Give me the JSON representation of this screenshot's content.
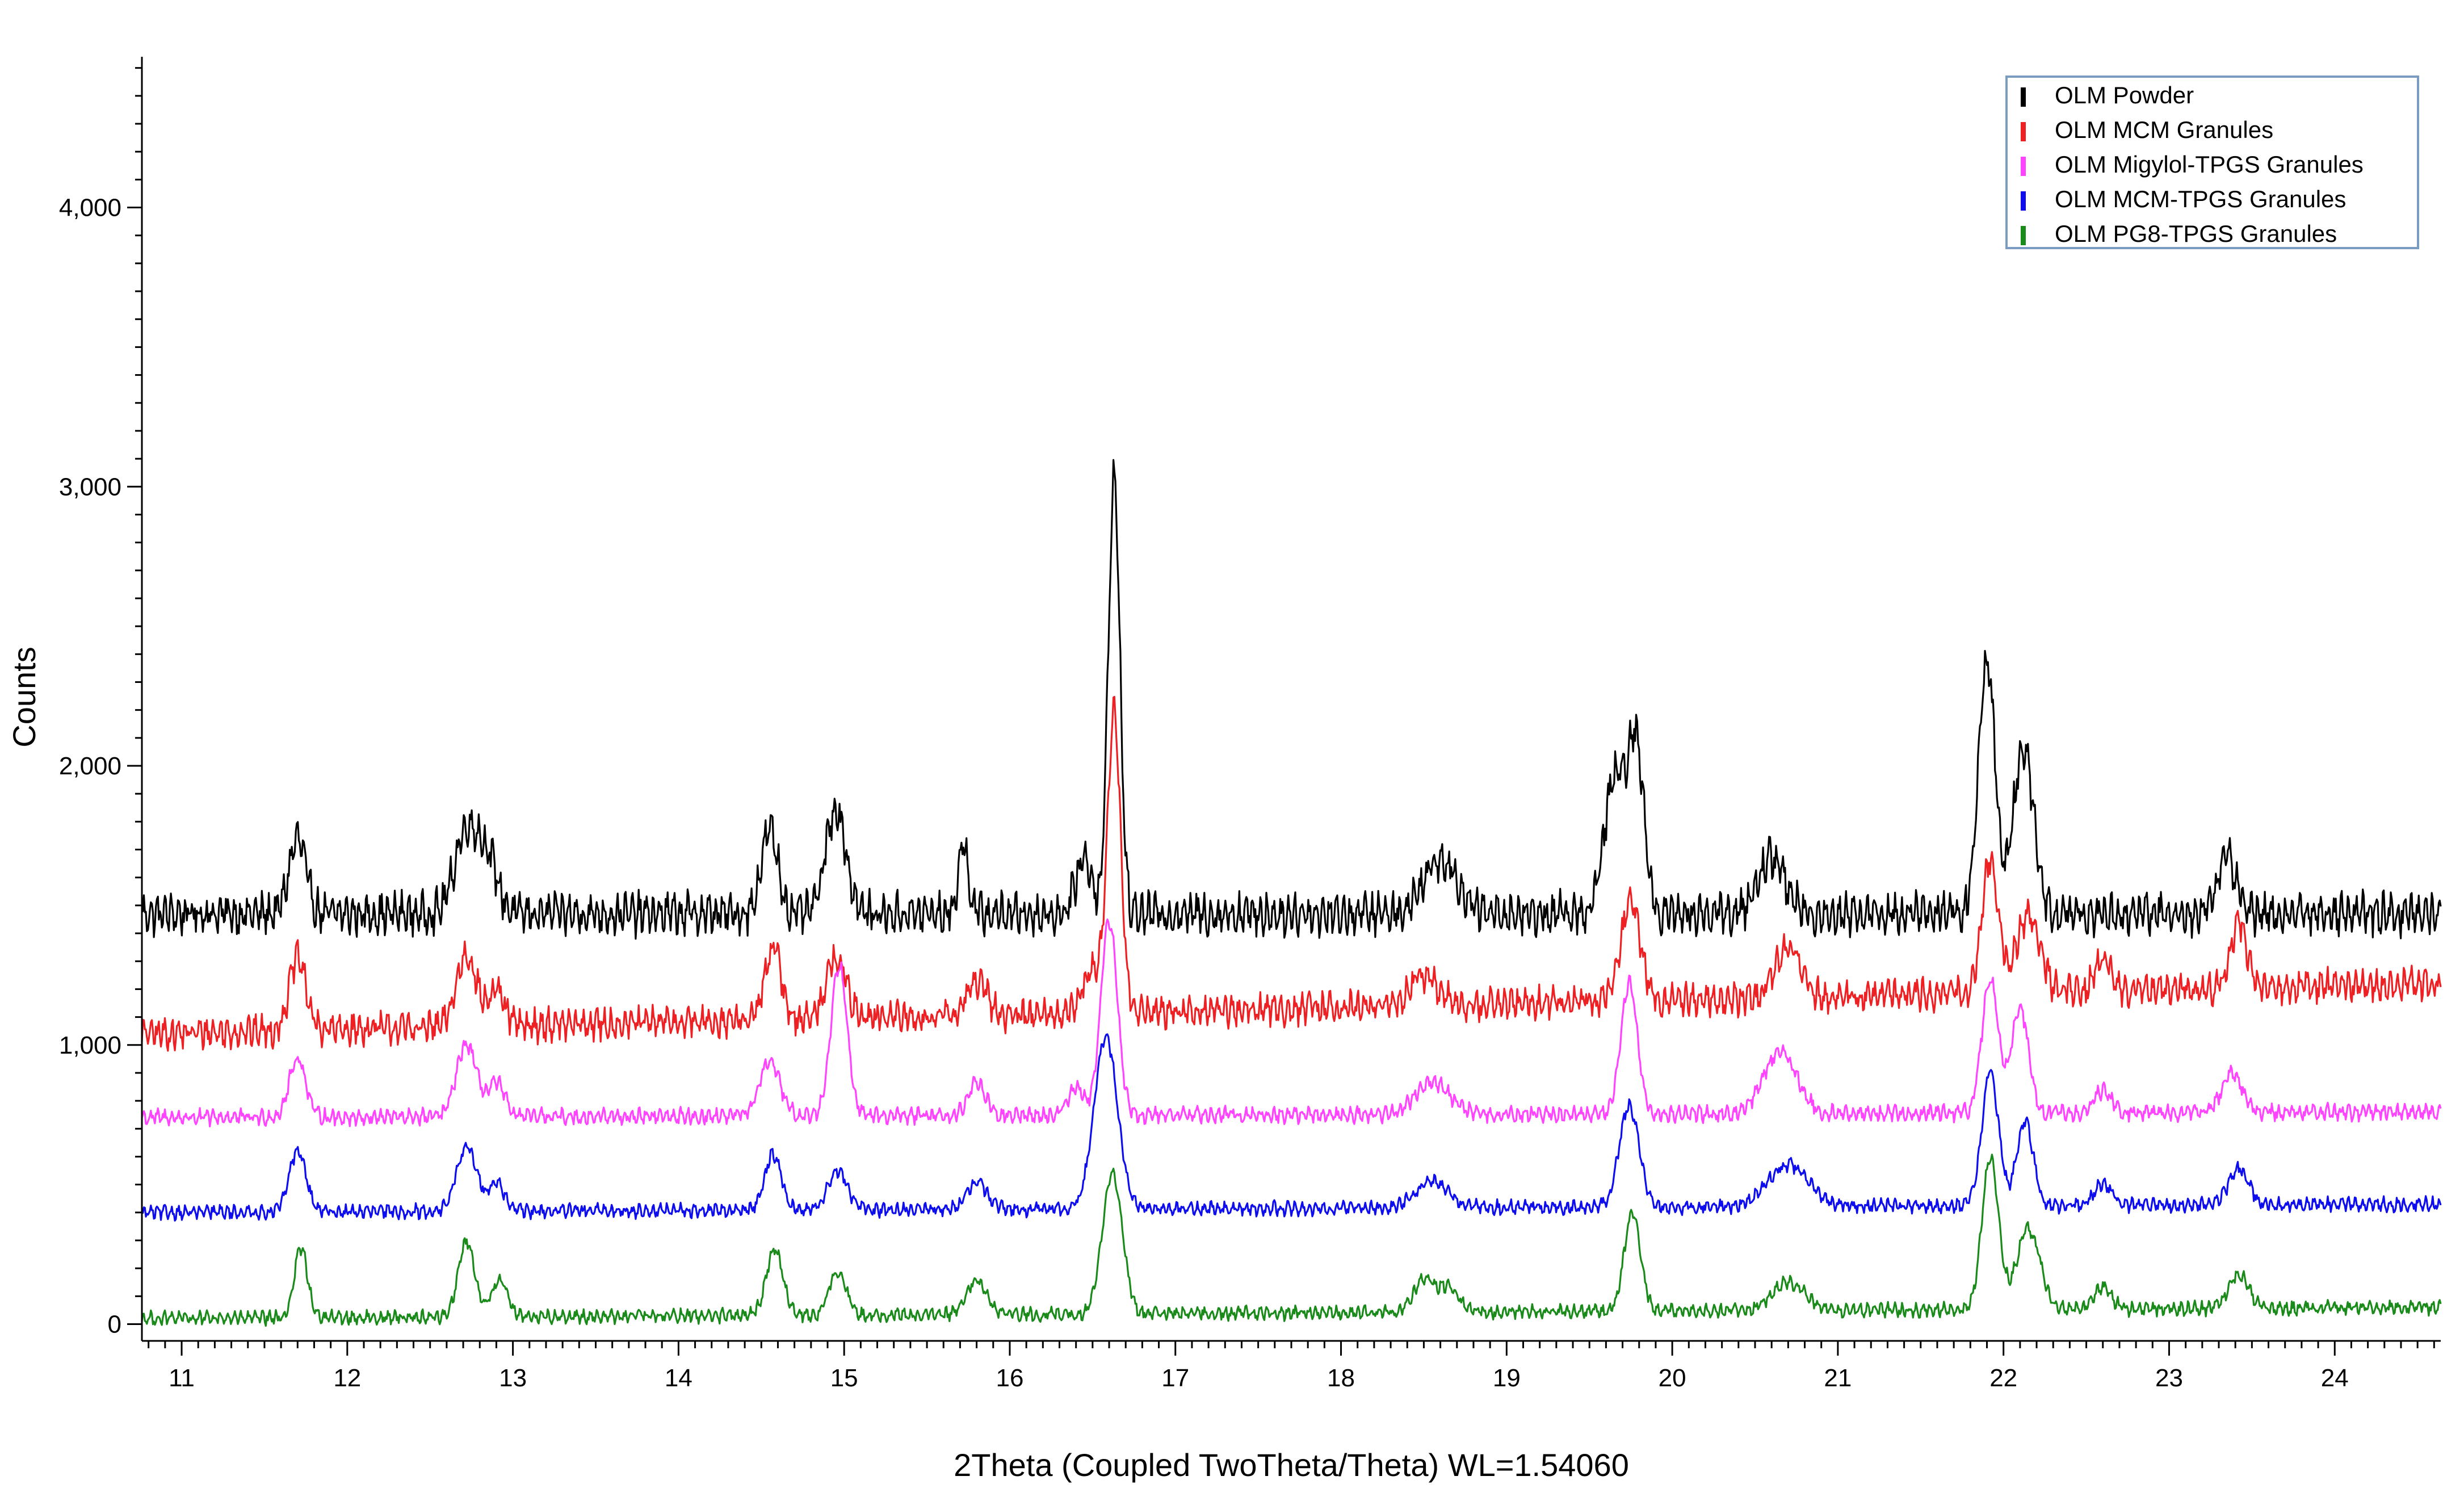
{
  "chart_data": {
    "type": "line",
    "title": "",
    "xlabel": "2Theta (Coupled TwoTheta/Theta) WL=1.54060",
    "ylabel": "Counts",
    "xlim": [
      10.76,
      24.64
    ],
    "ylim": [
      -60,
      4540
    ],
    "xticks": [
      11,
      12,
      13,
      14,
      15,
      16,
      17,
      18,
      19,
      20,
      21,
      22,
      23,
      24
    ],
    "xtick_labels": [
      "11",
      "12",
      "13",
      "14",
      "15",
      "16",
      "17",
      "18",
      "19",
      "20",
      "21",
      "22",
      "23",
      "24"
    ],
    "yticks": [
      0,
      1000,
      2000,
      3000,
      4000
    ],
    "ytick_labels": [
      "0",
      "1,000",
      "2,000",
      "3,000",
      "4,000"
    ],
    "grid": false,
    "legend_position": "top-right",
    "series": [
      {
        "name": "OLM Powder",
        "color": "#000000",
        "baseline": 1470,
        "noise": 90,
        "peaks": [
          [
            11.7,
            270,
            0.05
          ],
          [
            12.72,
            300,
            0.07
          ],
          [
            12.85,
            180,
            0.06
          ],
          [
            14.55,
            300,
            0.05
          ],
          [
            14.95,
            380,
            0.06
          ],
          [
            15.72,
            250,
            0.03
          ],
          [
            16.45,
            200,
            0.05
          ],
          [
            16.63,
            1560,
            0.035
          ],
          [
            19.65,
            480,
            0.06
          ],
          [
            19.78,
            600,
            0.05
          ],
          [
            21.9,
            900,
            0.05
          ],
          [
            22.12,
            600,
            0.06
          ],
          [
            20.6,
            200,
            0.08
          ],
          [
            18.6,
            200,
            0.1
          ],
          [
            23.35,
            200,
            0.06
          ]
        ],
        "x": [
          11.0,
          12.0,
          13.0,
          14.0,
          15.0,
          16.0,
          16.63,
          17.0,
          18.0,
          19.0,
          19.78,
          20.0,
          21.0,
          21.92,
          22.0,
          23.0,
          24.0
        ],
        "y": [
          1480,
          1460,
          1480,
          1460,
          1870,
          1470,
          3040,
          1480,
          1480,
          1490,
          2080,
          1560,
          1480,
          2380,
          1960,
          1470,
          1460
        ]
      },
      {
        "name": "OLM MCM Granules",
        "color": "#ed2024",
        "baseline_start": 1040,
        "baseline_end": 1220,
        "noise": 70,
        "peaks": [
          [
            11.7,
            260,
            0.05
          ],
          [
            12.72,
            260,
            0.06
          ],
          [
            12.9,
            120,
            0.05
          ],
          [
            14.57,
            260,
            0.05
          ],
          [
            14.95,
            220,
            0.06
          ],
          [
            15.8,
            120,
            0.06
          ],
          [
            16.63,
            1060,
            0.04
          ],
          [
            16.5,
            150,
            0.06
          ],
          [
            18.5,
            110,
            0.08
          ],
          [
            19.75,
            350,
            0.06
          ],
          [
            20.7,
            180,
            0.08
          ],
          [
            21.92,
            480,
            0.05
          ],
          [
            22.15,
            280,
            0.07
          ],
          [
            22.6,
            100,
            0.05
          ],
          [
            23.42,
            230,
            0.05
          ]
        ],
        "x": [
          11.0,
          12.0,
          13.0,
          14.0,
          14.95,
          16.0,
          16.65,
          17.0,
          18.0,
          19.0,
          19.75,
          20.0,
          21.0,
          21.92,
          22.0,
          23.0,
          24.0,
          24.6
        ],
        "y": [
          1050,
          1070,
          1120,
          1100,
          1370,
          1150,
          2200,
          1160,
          1160,
          1180,
          1550,
          1220,
          1200,
          1640,
          1420,
          1190,
          1180,
          1270
        ]
      },
      {
        "name": "OLM Migylol-TPGS Granules",
        "color": "#ff44ff",
        "baseline_start": 740,
        "baseline_end": 760,
        "noise": 35,
        "peaks": [
          [
            11.7,
            210,
            0.05
          ],
          [
            12.72,
            260,
            0.06
          ],
          [
            12.9,
            120,
            0.05
          ],
          [
            14.55,
            200,
            0.06
          ],
          [
            14.97,
            540,
            0.05
          ],
          [
            15.8,
            120,
            0.05
          ],
          [
            16.6,
            700,
            0.05
          ],
          [
            16.4,
            100,
            0.05
          ],
          [
            18.55,
            120,
            0.1
          ],
          [
            19.74,
            470,
            0.05
          ],
          [
            20.65,
            220,
            0.1
          ],
          [
            21.92,
            480,
            0.05
          ],
          [
            22.1,
            380,
            0.05
          ],
          [
            22.6,
            80,
            0.05
          ],
          [
            23.38,
            140,
            0.06
          ]
        ],
        "x": [
          11.0,
          12.0,
          12.72,
          13.0,
          14.0,
          14.97,
          16.0,
          16.6,
          17.0,
          18.0,
          19.0,
          19.74,
          20.0,
          21.0,
          21.92,
          22.0,
          23.0,
          24.0,
          24.6
        ],
        "y": [
          760,
          740,
          1020,
          760,
          750,
          1340,
          760,
          1470,
          770,
          760,
          770,
          1240,
          800,
          820,
          1260,
          1100,
          760,
          760,
          880
        ]
      },
      {
        "name": "OLM MCM-TPGS Granules",
        "color": "#0d0ded",
        "baseline_start": 400,
        "baseline_end": 430,
        "noise": 30,
        "peaks": [
          [
            11.7,
            220,
            0.05
          ],
          [
            12.72,
            230,
            0.06
          ],
          [
            12.9,
            100,
            0.05
          ],
          [
            14.57,
            200,
            0.05
          ],
          [
            14.96,
            140,
            0.06
          ],
          [
            15.8,
            100,
            0.06
          ],
          [
            16.58,
            620,
            0.07
          ],
          [
            18.55,
            90,
            0.1
          ],
          [
            19.74,
            360,
            0.06
          ],
          [
            20.7,
            150,
            0.12
          ],
          [
            21.92,
            480,
            0.05
          ],
          [
            22.13,
            300,
            0.05
          ],
          [
            22.6,
            80,
            0.05
          ],
          [
            23.42,
            130,
            0.06
          ]
        ],
        "x": [
          11.0,
          12.0,
          12.72,
          13.0,
          14.0,
          15.0,
          16.0,
          16.6,
          17.0,
          18.0,
          19.0,
          19.74,
          20.0,
          21.0,
          21.92,
          22.0,
          23.0,
          24.0,
          24.6
        ],
        "y": [
          410,
          400,
          630,
          410,
          400,
          540,
          410,
          1040,
          420,
          420,
          450,
          770,
          470,
          510,
          900,
          620,
          420,
          410,
          550
        ]
      },
      {
        "name": "OLM PG8-TPGS Granules",
        "color": "#1a8a1a",
        "baseline_start": 20,
        "baseline_end": 60,
        "noise": 30,
        "peaks": [
          [
            11.72,
            250,
            0.04
          ],
          [
            12.72,
            270,
            0.05
          ],
          [
            12.92,
            130,
            0.05
          ],
          [
            14.58,
            240,
            0.05
          ],
          [
            14.96,
            160,
            0.05
          ],
          [
            15.8,
            120,
            0.06
          ],
          [
            16.62,
            500,
            0.06
          ],
          [
            18.5,
            120,
            0.06
          ],
          [
            18.65,
            90,
            0.06
          ],
          [
            19.76,
            350,
            0.05
          ],
          [
            20.7,
            100,
            0.1
          ],
          [
            21.92,
            540,
            0.05
          ],
          [
            22.15,
            290,
            0.07
          ],
          [
            22.6,
            80,
            0.05
          ],
          [
            23.42,
            120,
            0.06
          ]
        ],
        "x": [
          11.0,
          11.72,
          12.0,
          12.72,
          13.0,
          14.0,
          14.58,
          15.0,
          16.0,
          16.62,
          17.0,
          18.0,
          19.0,
          19.76,
          20.0,
          21.0,
          21.92,
          22.0,
          23.0,
          24.0,
          24.6
        ],
        "y": [
          30,
          270,
          20,
          300,
          30,
          20,
          260,
          120,
          40,
          540,
          40,
          40,
          60,
          380,
          70,
          60,
          570,
          340,
          50,
          40,
          140
        ]
      }
    ]
  }
}
